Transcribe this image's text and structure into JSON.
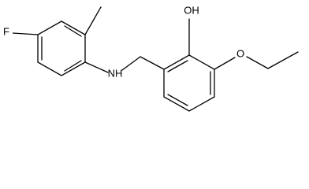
{
  "atoms": [
    {
      "label": "F"
    },
    {
      "label": "NH"
    },
    {
      "label": "OH"
    },
    {
      "label": "O"
    }
  ]
}
